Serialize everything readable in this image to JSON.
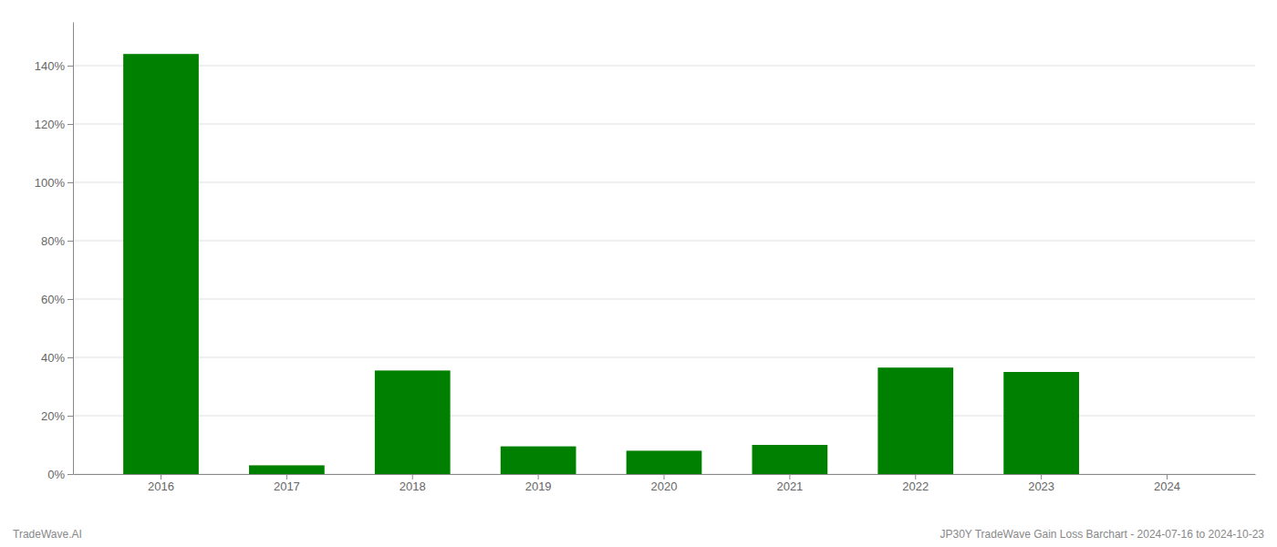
{
  "chart_data": {
    "type": "bar",
    "categories": [
      "2016",
      "2017",
      "2018",
      "2019",
      "2020",
      "2021",
      "2022",
      "2023",
      "2024"
    ],
    "values": [
      1.44,
      0.03,
      0.355,
      0.095,
      0.08,
      0.1,
      0.365,
      0.35,
      0.0
    ],
    "color": "#008000",
    "ylim": [
      0,
      1.55
    ],
    "yticks": [
      {
        "value": 0,
        "label": "0%"
      },
      {
        "value": 0.2,
        "label": "20%"
      },
      {
        "value": 0.4,
        "label": "40%"
      },
      {
        "value": 0.6,
        "label": "60%"
      },
      {
        "value": 0.8,
        "label": "80%"
      },
      {
        "value": 1.0,
        "label": "100%"
      },
      {
        "value": 1.2,
        "label": "120%"
      },
      {
        "value": 1.4,
        "label": "140%"
      }
    ],
    "grid": true,
    "annotations": [
      "TradeWave.AI",
      "JP30Y TradeWave Gain Loss Barchart - 2024-07-16 to 2024-10-23"
    ]
  }
}
